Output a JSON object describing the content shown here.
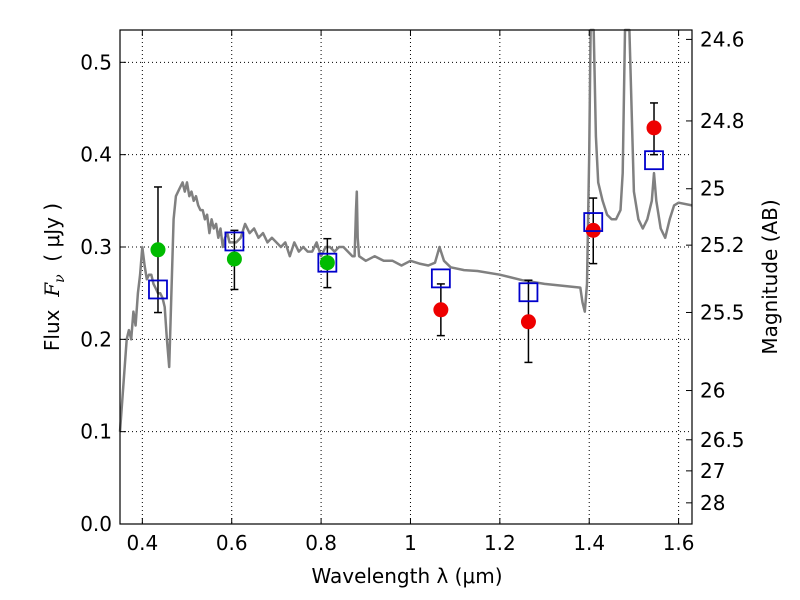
{
  "chart_data": {
    "type": "scatter",
    "xlabel": "Wavelength  λ (μm)",
    "ylabel": "Flux  F_ν  ( μJy )",
    "ylabel_parts": {
      "prefix": "Flux  ",
      "symbol": "F",
      "subscript": "ν",
      "unit": "  ( μJy )"
    },
    "y2label": "Magnitude (AB)",
    "xlim": [
      0.35,
      1.63
    ],
    "ylim": [
      0.0,
      0.535
    ],
    "grid": true,
    "x_ticks": [
      0.4,
      0.6,
      0.8,
      1.0,
      1.2,
      1.4,
      1.6
    ],
    "x_tick_labels": [
      "0.4",
      "0.6",
      "0.8",
      "1",
      "1.2",
      "1.4",
      "1.6"
    ],
    "y_ticks": [
      0.0,
      0.1,
      0.2,
      0.3,
      0.4,
      0.5
    ],
    "y_tick_labels": [
      "0.0",
      "0.1",
      "0.2",
      "0.3",
      "0.4",
      "0.5"
    ],
    "y2_ticks": [
      24.6,
      24.8,
      25,
      25.2,
      25.5,
      26,
      26.5,
      27,
      28
    ],
    "y2_tick_labels": [
      "24.6",
      "24.8",
      "25",
      "25.2",
      "25.5",
      "26",
      "26.5",
      "27",
      "28"
    ],
    "colors": {
      "model": "#808080",
      "green": "#00bb00",
      "red": "#ee0000",
      "box": "#0000cc",
      "error": "#000000"
    },
    "series": [
      {
        "marker": "circle",
        "color": "#00bb00",
        "points": [
          {
            "x": 0.435,
            "y": 0.297,
            "yerr_low": 0.229,
            "yerr_high": 0.365
          },
          {
            "x": 0.606,
            "y": 0.287,
            "yerr_low": 0.254,
            "yerr_high": 0.318
          },
          {
            "x": 0.814,
            "y": 0.283,
            "yerr_low": 0.256,
            "yerr_high": 0.309
          }
        ]
      },
      {
        "marker": "circle",
        "color": "#ee0000",
        "points": [
          {
            "x": 1.068,
            "y": 0.232,
            "yerr_low": 0.204,
            "yerr_high": 0.26
          },
          {
            "x": 1.264,
            "y": 0.219,
            "yerr_low": 0.175,
            "yerr_high": 0.264
          },
          {
            "x": 1.409,
            "y": 0.318,
            "yerr_low": 0.282,
            "yerr_high": 0.353
          },
          {
            "x": 1.545,
            "y": 0.429,
            "yerr_low": 0.4,
            "yerr_high": 0.456
          }
        ]
      },
      {
        "marker": "open-square",
        "color": "#0000cc",
        "points": [
          {
            "x": 0.435,
            "y": 0.254
          },
          {
            "x": 0.606,
            "y": 0.306
          },
          {
            "x": 0.814,
            "y": 0.283
          },
          {
            "x": 1.068,
            "y": 0.266
          },
          {
            "x": 1.264,
            "y": 0.251
          },
          {
            "x": 1.409,
            "y": 0.327
          },
          {
            "x": 1.545,
            "y": 0.394
          }
        ]
      },
      {
        "marker": "line",
        "color": "#808080",
        "points": [
          [
            0.35,
            0.1
          ],
          [
            0.365,
            0.2
          ],
          [
            0.37,
            0.21
          ],
          [
            0.375,
            0.2
          ],
          [
            0.38,
            0.23
          ],
          [
            0.385,
            0.215
          ],
          [
            0.39,
            0.25
          ],
          [
            0.395,
            0.27
          ],
          [
            0.4,
            0.3
          ],
          [
            0.405,
            0.28
          ],
          [
            0.41,
            0.265
          ],
          [
            0.415,
            0.27
          ],
          [
            0.42,
            0.27
          ],
          [
            0.425,
            0.26
          ],
          [
            0.43,
            0.255
          ],
          [
            0.435,
            0.25
          ],
          [
            0.44,
            0.25
          ],
          [
            0.445,
            0.245
          ],
          [
            0.45,
            0.235
          ],
          [
            0.455,
            0.2
          ],
          [
            0.46,
            0.17
          ],
          [
            0.465,
            0.25
          ],
          [
            0.47,
            0.33
          ],
          [
            0.475,
            0.355
          ],
          [
            0.48,
            0.36
          ],
          [
            0.485,
            0.365
          ],
          [
            0.49,
            0.37
          ],
          [
            0.495,
            0.36
          ],
          [
            0.5,
            0.37
          ],
          [
            0.505,
            0.355
          ],
          [
            0.51,
            0.36
          ],
          [
            0.515,
            0.35
          ],
          [
            0.52,
            0.355
          ],
          [
            0.525,
            0.345
          ],
          [
            0.53,
            0.34
          ],
          [
            0.535,
            0.34
          ],
          [
            0.54,
            0.33
          ],
          [
            0.545,
            0.335
          ],
          [
            0.55,
            0.315
          ],
          [
            0.555,
            0.33
          ],
          [
            0.56,
            0.32
          ],
          [
            0.565,
            0.325
          ],
          [
            0.57,
            0.31
          ],
          [
            0.575,
            0.32
          ],
          [
            0.58,
            0.3
          ],
          [
            0.585,
            0.31
          ],
          [
            0.59,
            0.315
          ],
          [
            0.595,
            0.305
          ],
          [
            0.6,
            0.305
          ],
          [
            0.61,
            0.305
          ],
          [
            0.62,
            0.31
          ],
          [
            0.63,
            0.325
          ],
          [
            0.64,
            0.315
          ],
          [
            0.65,
            0.32
          ],
          [
            0.66,
            0.31
          ],
          [
            0.67,
            0.315
          ],
          [
            0.68,
            0.305
          ],
          [
            0.69,
            0.31
          ],
          [
            0.7,
            0.305
          ],
          [
            0.71,
            0.3
          ],
          [
            0.72,
            0.305
          ],
          [
            0.73,
            0.29
          ],
          [
            0.74,
            0.305
          ],
          [
            0.75,
            0.295
          ],
          [
            0.76,
            0.3
          ],
          [
            0.77,
            0.295
          ],
          [
            0.78,
            0.295
          ],
          [
            0.79,
            0.305
          ],
          [
            0.8,
            0.29
          ],
          [
            0.81,
            0.3
          ],
          [
            0.82,
            0.3
          ],
          [
            0.83,
            0.295
          ],
          [
            0.84,
            0.3
          ],
          [
            0.85,
            0.3
          ],
          [
            0.86,
            0.295
          ],
          [
            0.87,
            0.29
          ],
          [
            0.875,
            0.29
          ],
          [
            0.878,
            0.34
          ],
          [
            0.88,
            0.36
          ],
          [
            0.882,
            0.31
          ],
          [
            0.885,
            0.29
          ],
          [
            0.9,
            0.285
          ],
          [
            0.92,
            0.29
          ],
          [
            0.94,
            0.285
          ],
          [
            0.96,
            0.285
          ],
          [
            0.98,
            0.28
          ],
          [
            1.0,
            0.285
          ],
          [
            1.02,
            0.282
          ],
          [
            1.04,
            0.28
          ],
          [
            1.055,
            0.283
          ],
          [
            1.065,
            0.3
          ],
          [
            1.075,
            0.285
          ],
          [
            1.09,
            0.278
          ],
          [
            1.12,
            0.275
          ],
          [
            1.15,
            0.274
          ],
          [
            1.2,
            0.27
          ],
          [
            1.25,
            0.264
          ],
          [
            1.3,
            0.26
          ],
          [
            1.34,
            0.258
          ],
          [
            1.38,
            0.256
          ],
          [
            1.385,
            0.24
          ],
          [
            1.39,
            0.23
          ],
          [
            1.395,
            0.26
          ],
          [
            1.4,
            0.4
          ],
          [
            1.403,
            0.535
          ],
          [
            1.41,
            0.535
          ],
          [
            1.415,
            0.42
          ],
          [
            1.42,
            0.37
          ],
          [
            1.43,
            0.35
          ],
          [
            1.44,
            0.335
          ],
          [
            1.45,
            0.33
          ],
          [
            1.46,
            0.33
          ],
          [
            1.47,
            0.34
          ],
          [
            1.475,
            0.38
          ],
          [
            1.48,
            0.535
          ],
          [
            1.49,
            0.535
          ],
          [
            1.5,
            0.36
          ],
          [
            1.51,
            0.33
          ],
          [
            1.52,
            0.32
          ],
          [
            1.53,
            0.33
          ],
          [
            1.54,
            0.35
          ],
          [
            1.545,
            0.38
          ],
          [
            1.55,
            0.35
          ],
          [
            1.56,
            0.32
          ],
          [
            1.57,
            0.31
          ],
          [
            1.58,
            0.33
          ],
          [
            1.59,
            0.345
          ],
          [
            1.6,
            0.348
          ],
          [
            1.63,
            0.345
          ]
        ]
      }
    ]
  }
}
